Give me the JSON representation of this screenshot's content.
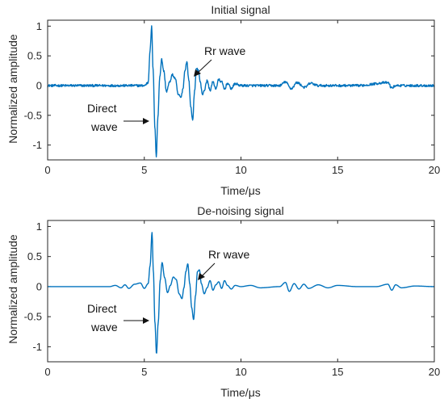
{
  "colors": {
    "signal": "#0072BD",
    "axis": "#262626"
  },
  "chart_data": [
    {
      "type": "line",
      "title": "Initial signal",
      "xlabel": "Time/μs",
      "ylabel": "Normalized amplitude",
      "xlim": [
        0,
        20
      ],
      "ylim": [
        -1.25,
        1.1
      ],
      "xticks": [
        0,
        5,
        10,
        15,
        20
      ],
      "xtick_labels": [
        "0",
        "5",
        "10",
        "15",
        "20"
      ],
      "yticks": [
        1,
        0.5,
        0,
        -0.5,
        -1
      ],
      "ytick_labels": [
        "1",
        "0.5",
        "0",
        "-0.5",
        "-1"
      ],
      "grid": false,
      "noise_level": 0.02,
      "series": [
        {
          "x": [
            0,
            5.0,
            5.2,
            5.3,
            5.38,
            5.45,
            5.55,
            5.62,
            5.7,
            5.8,
            5.9,
            6.0,
            6.15,
            6.3,
            6.45,
            6.6,
            6.75,
            6.9,
            7.0,
            7.1,
            7.2,
            7.3,
            7.4,
            7.5,
            7.6,
            7.7,
            7.8,
            7.9,
            8.0,
            8.1,
            8.25,
            8.4,
            8.55,
            8.7,
            8.85,
            9.0,
            9.15,
            9.3,
            9.5,
            9.7,
            10.0,
            12.0,
            12.3,
            12.6,
            12.9,
            13.3,
            13.6,
            14.0,
            16.0,
            17.6,
            17.8,
            18.0,
            20.0
          ],
          "y": [
            0,
            0,
            0.05,
            0.6,
            0.99,
            0.3,
            -0.7,
            -1.2,
            -0.55,
            0.15,
            0.44,
            0.25,
            -0.1,
            0.05,
            0.18,
            0.12,
            -0.15,
            -0.2,
            -0.05,
            0.25,
            0.4,
            0.1,
            -0.35,
            -0.58,
            -0.1,
            0.3,
            0.25,
            0.05,
            -0.15,
            -0.08,
            0.08,
            -0.08,
            0.06,
            -0.05,
            0.1,
            0.06,
            -0.06,
            0.04,
            -0.05,
            0.03,
            0,
            0,
            0.06,
            -0.05,
            0.05,
            -0.03,
            0.04,
            0,
            0,
            0.05,
            -0.04,
            0,
            0
          ]
        }
      ],
      "annotations": [
        {
          "lines": [
            "Rr wave"
          ]
        },
        {
          "lines": [
            "Direct",
            "wave"
          ]
        }
      ]
    },
    {
      "type": "line",
      "title": "De-noising signal",
      "xlabel": "Time/μs",
      "ylabel": "Normalized amplitude",
      "xlim": [
        0,
        20
      ],
      "ylim": [
        -1.25,
        1.1
      ],
      "xticks": [
        0,
        5,
        10,
        15,
        20
      ],
      "xtick_labels": [
        "0",
        "5",
        "10",
        "15",
        "20"
      ],
      "yticks": [
        1,
        0.5,
        0,
        -0.5,
        -1
      ],
      "ytick_labels": [
        "1",
        "0.5",
        "0",
        "-0.5",
        "-1"
      ],
      "grid": false,
      "noise_level": 0,
      "series": [
        {
          "x": [
            0,
            3.2,
            3.5,
            3.8,
            4.0,
            4.2,
            4.5,
            4.8,
            5.0,
            5.2,
            5.3,
            5.4,
            5.47,
            5.55,
            5.63,
            5.72,
            5.82,
            5.92,
            6.05,
            6.2,
            6.35,
            6.5,
            6.65,
            6.8,
            6.95,
            7.05,
            7.15,
            7.25,
            7.35,
            7.45,
            7.55,
            7.65,
            7.75,
            7.85,
            7.95,
            8.1,
            8.25,
            8.4,
            8.55,
            8.7,
            8.85,
            9.0,
            9.15,
            9.3,
            9.5,
            9.7,
            10.0,
            10.5,
            11.0,
            12.0,
            12.3,
            12.5,
            12.75,
            13.0,
            13.25,
            13.5,
            14.0,
            14.5,
            15.0,
            16.0,
            17.0,
            17.6,
            17.8,
            18.0,
            18.3,
            19.0,
            20.0
          ],
          "y": [
            0,
            0,
            0.02,
            -0.02,
            0.03,
            -0.03,
            0.04,
            0.06,
            -0.03,
            0.05,
            0.35,
            0.9,
            0.25,
            -0.6,
            -1.12,
            -0.6,
            0.1,
            0.4,
            0.15,
            -0.1,
            0.02,
            0.16,
            0.12,
            -0.12,
            -0.2,
            -0.02,
            0.25,
            0.38,
            0.05,
            -0.35,
            -0.55,
            -0.15,
            0.25,
            0.28,
            0.05,
            -0.12,
            -0.02,
            0.1,
            -0.06,
            0.03,
            0.08,
            -0.03,
            0.1,
            0.02,
            -0.04,
            0.02,
            0,
            0.02,
            -0.02,
            0,
            0.07,
            -0.08,
            0.05,
            -0.04,
            0.04,
            -0.03,
            0.03,
            -0.02,
            0.02,
            0,
            0,
            0.04,
            -0.06,
            0.03,
            -0.02,
            0.01,
            0
          ]
        }
      ],
      "annotations": [
        {
          "lines": [
            "Rr wave"
          ]
        },
        {
          "lines": [
            "Direct",
            "wave"
          ]
        }
      ]
    }
  ]
}
